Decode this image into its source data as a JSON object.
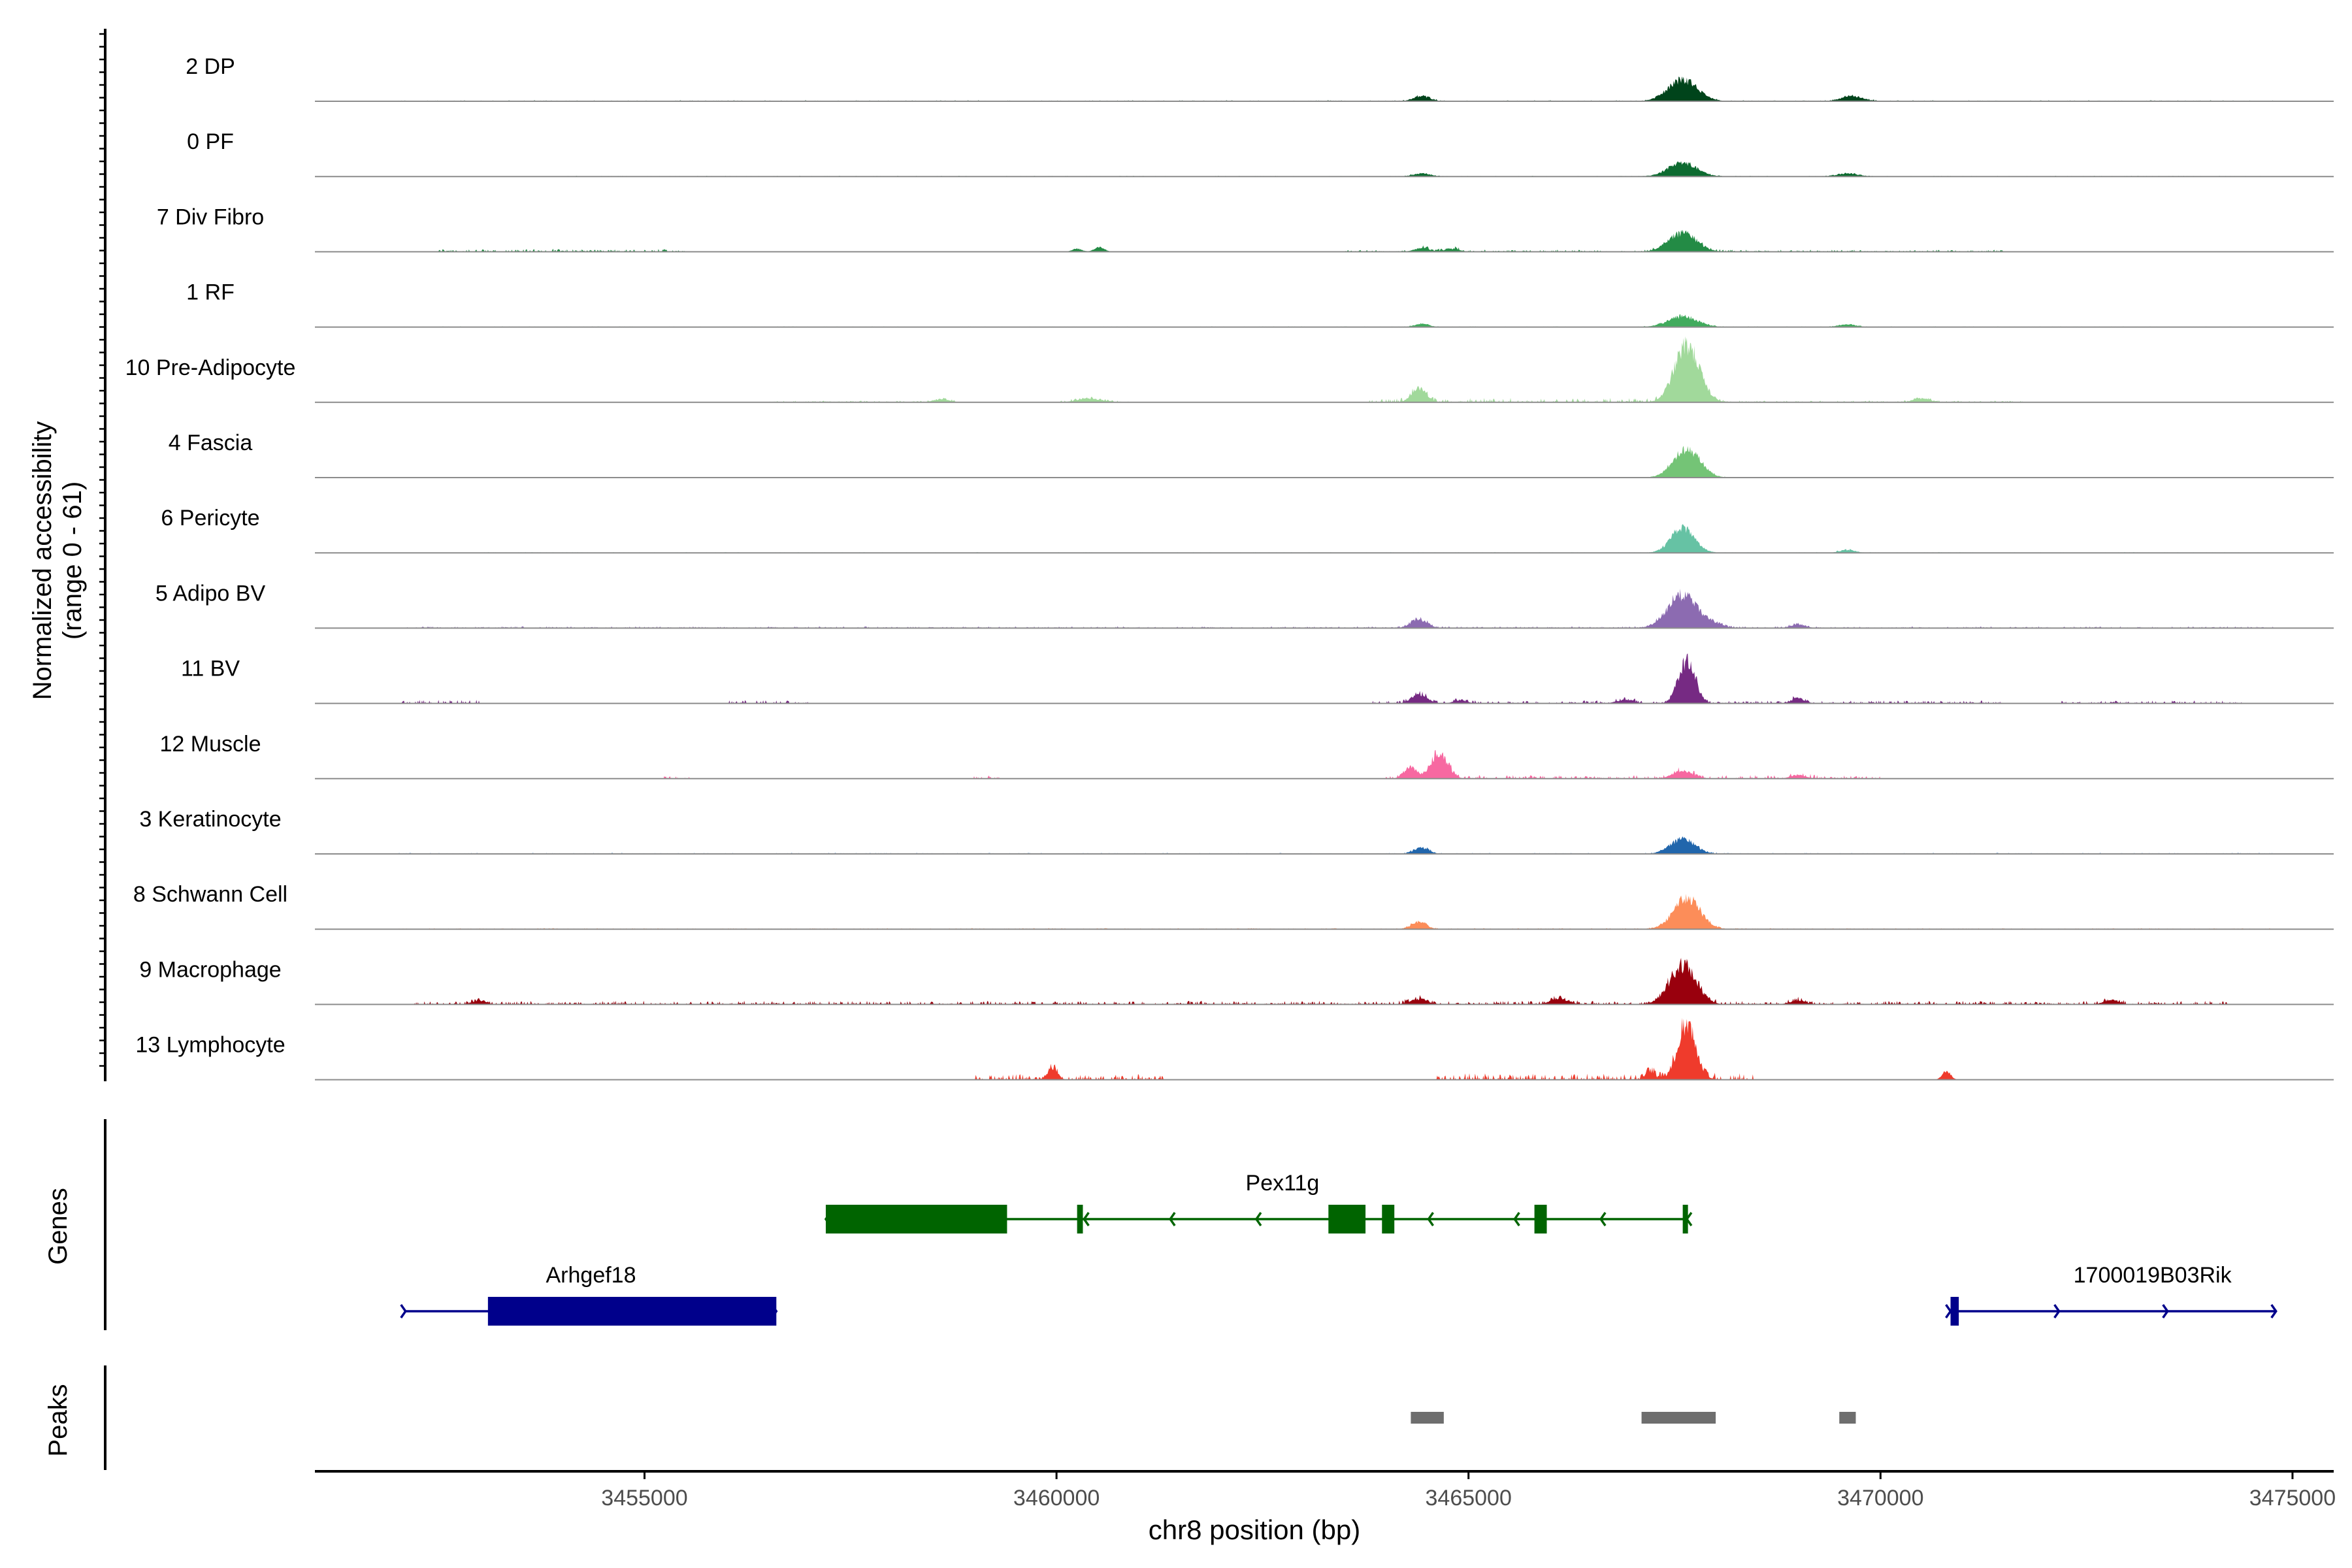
{
  "chart_data": {
    "type": "area",
    "title": "",
    "ylabel_line1": "Normalized accessibility",
    "ylabel_line2": "(range 0 - 61)",
    "xlabel": "chr8 position (bp)",
    "xlim": [
      3451000,
      3475500
    ],
    "ylim": [
      0,
      61
    ],
    "xticks": [
      3455000,
      3460000,
      3465000,
      3470000,
      3475000
    ],
    "xtick_labels": [
      "3455000",
      "3460000",
      "3465000",
      "3470000",
      "3475000"
    ],
    "tracks": [
      {
        "name": "2 DP",
        "color": "#00441b",
        "peaks": [
          [
            3464430,
            0.2,
            100
          ],
          [
            3467600,
            0.85,
            180
          ],
          [
            3469650,
            0.2,
            130
          ]
        ],
        "background": [
          [
            3452000,
            3474800,
            0.03
          ]
        ]
      },
      {
        "name": "0 PF",
        "color": "#0d6b30",
        "peaks": [
          [
            3464430,
            0.12,
            100
          ],
          [
            3467600,
            0.55,
            170
          ],
          [
            3469600,
            0.12,
            130
          ]
        ],
        "background": [
          [
            3454000,
            3474800,
            0.02
          ]
        ]
      },
      {
        "name": "7 Div Fibro",
        "color": "#238b45",
        "peaks": [
          [
            3467600,
            0.75,
            170
          ],
          [
            3460520,
            0.2,
            60
          ],
          [
            3460250,
            0.12,
            60
          ],
          [
            3464430,
            0.15,
            90
          ],
          [
            3464800,
            0.12,
            90
          ]
        ],
        "background": [
          [
            3452500,
            3455500,
            0.08
          ],
          [
            3463500,
            3471500,
            0.06
          ]
        ]
      },
      {
        "name": "1 RF",
        "color": "#41ab5d",
        "peaks": [
          [
            3467600,
            0.42,
            180
          ],
          [
            3464430,
            0.12,
            90
          ],
          [
            3469600,
            0.1,
            110
          ]
        ],
        "background": [
          [
            3452000,
            3474800,
            0.02
          ]
        ]
      },
      {
        "name": "10 Pre-Adipocyte",
        "color": "#a1d99b",
        "peaks": [
          [
            3467650,
            2.3,
            150
          ],
          [
            3464400,
            0.55,
            90
          ],
          [
            3460400,
            0.15,
            150
          ],
          [
            3458600,
            0.12,
            100
          ],
          [
            3470500,
            0.15,
            100
          ]
        ],
        "background": [
          [
            3456500,
            3458800,
            0.05
          ],
          [
            3460000,
            3460900,
            0.06
          ],
          [
            3463800,
            3467300,
            0.12
          ],
          [
            3467900,
            3471800,
            0.05
          ]
        ]
      },
      {
        "name": "4 Fascia",
        "color": "#74c476",
        "peaks": [
          [
            3467650,
            1.15,
            160
          ]
        ],
        "background": [
          [
            3452000,
            3474800,
            0.02
          ]
        ]
      },
      {
        "name": "6 Pericyte",
        "color": "#66c2a4",
        "peaks": [
          [
            3467600,
            1.0,
            140
          ],
          [
            3469600,
            0.12,
            90
          ]
        ],
        "background": [
          [
            3453000,
            3474800,
            0.02
          ]
        ]
      },
      {
        "name": "5 Adipo BV",
        "color": "#8c6bb1",
        "peaks": [
          [
            3467600,
            1.35,
            180
          ],
          [
            3464400,
            0.35,
            100
          ],
          [
            3468000,
            0.12,
            120
          ],
          [
            3469000,
            0.15,
            90
          ]
        ],
        "background": [
          [
            3452000,
            3474800,
            0.05
          ]
        ]
      },
      {
        "name": "11 BV",
        "color": "#762a83",
        "peaks": [
          [
            3467650,
            1.7,
            100
          ],
          [
            3464400,
            0.38,
            90
          ],
          [
            3464900,
            0.12,
            80
          ],
          [
            3466900,
            0.15,
            100
          ],
          [
            3469000,
            0.2,
            80
          ]
        ],
        "background": [
          [
            3452000,
            3453000,
            0.1
          ],
          [
            3456000,
            3457000,
            0.1
          ],
          [
            3463800,
            3471500,
            0.08
          ],
          [
            3472200,
            3474400,
            0.08
          ]
        ]
      },
      {
        "name": "12 Muscle",
        "color": "#f768a1",
        "peaks": [
          [
            3464650,
            1.0,
            100
          ],
          [
            3464300,
            0.45,
            80
          ],
          [
            3467600,
            0.3,
            120
          ],
          [
            3469000,
            0.15,
            90
          ]
        ],
        "background": [
          [
            3455200,
            3455600,
            0.1
          ],
          [
            3459000,
            3459300,
            0.1
          ],
          [
            3464000,
            3470000,
            0.1
          ]
        ]
      },
      {
        "name": "3 Keratinocyte",
        "color": "#2166ac",
        "peaks": [
          [
            3467600,
            0.6,
            150
          ],
          [
            3464430,
            0.25,
            90
          ]
        ],
        "background": [
          [
            3452000,
            3474800,
            0.03
          ]
        ]
      },
      {
        "name": "8 Schwann Cell",
        "color": "#fc8d59",
        "peaks": [
          [
            3467650,
            1.25,
            160
          ],
          [
            3464400,
            0.3,
            90
          ]
        ],
        "background": [
          [
            3452000,
            3474800,
            0.03
          ]
        ]
      },
      {
        "name": "9 Macrophage",
        "color": "#99000d",
        "peaks": [
          [
            3467600,
            1.55,
            160
          ],
          [
            3464400,
            0.2,
            110
          ],
          [
            3469000,
            0.15,
            100
          ],
          [
            3472800,
            0.18,
            90
          ],
          [
            3453000,
            0.15,
            80
          ],
          [
            3466100,
            0.22,
            110
          ]
        ],
        "background": [
          [
            3452200,
            3474200,
            0.1
          ]
        ]
      },
      {
        "name": "13 Lymphocyte",
        "color": "#ef3b2c",
        "peaks": [
          [
            3467650,
            2.2,
            110
          ],
          [
            3459950,
            0.45,
            60
          ],
          [
            3470800,
            0.35,
            50
          ],
          [
            3467200,
            0.3,
            60
          ]
        ],
        "background": [
          [
            3459000,
            3461300,
            0.15
          ],
          [
            3464600,
            3468500,
            0.18
          ]
        ]
      }
    ],
    "genes": [
      {
        "name": "Pex11g",
        "strand": "-",
        "color": "#006400",
        "start": 3457200,
        "end": 3467650,
        "exons": [
          [
            3457200,
            3459400
          ],
          [
            3460250,
            3460320
          ],
          [
            3463300,
            3463750
          ],
          [
            3463950,
            3464100
          ],
          [
            3465800,
            3465950
          ],
          [
            3467600,
            3467650
          ]
        ]
      },
      {
        "name": "Arhgef18",
        "strand": "+",
        "color": "#00008b",
        "start": 3452100,
        "end": 3456600,
        "exons": [
          [
            3453100,
            3456600
          ]
        ]
      },
      {
        "name": "1700019B03Rik",
        "strand": "+",
        "color": "#00008b",
        "start": 3470850,
        "end": 3474800,
        "exons": [
          [
            3470850,
            3470950
          ]
        ]
      }
    ],
    "peak_regions": [
      [
        3464300,
        3464700
      ],
      [
        3467100,
        3468000
      ],
      [
        3469500,
        3469700
      ]
    ],
    "panel_labels": {
      "genes": "Genes",
      "peaks": "Peaks"
    },
    "colors": {
      "axis": "#000000",
      "baseline": "#8c8c8c",
      "peak_region": "#6e6e6e",
      "tick_label": "#4d4d4d"
    }
  }
}
